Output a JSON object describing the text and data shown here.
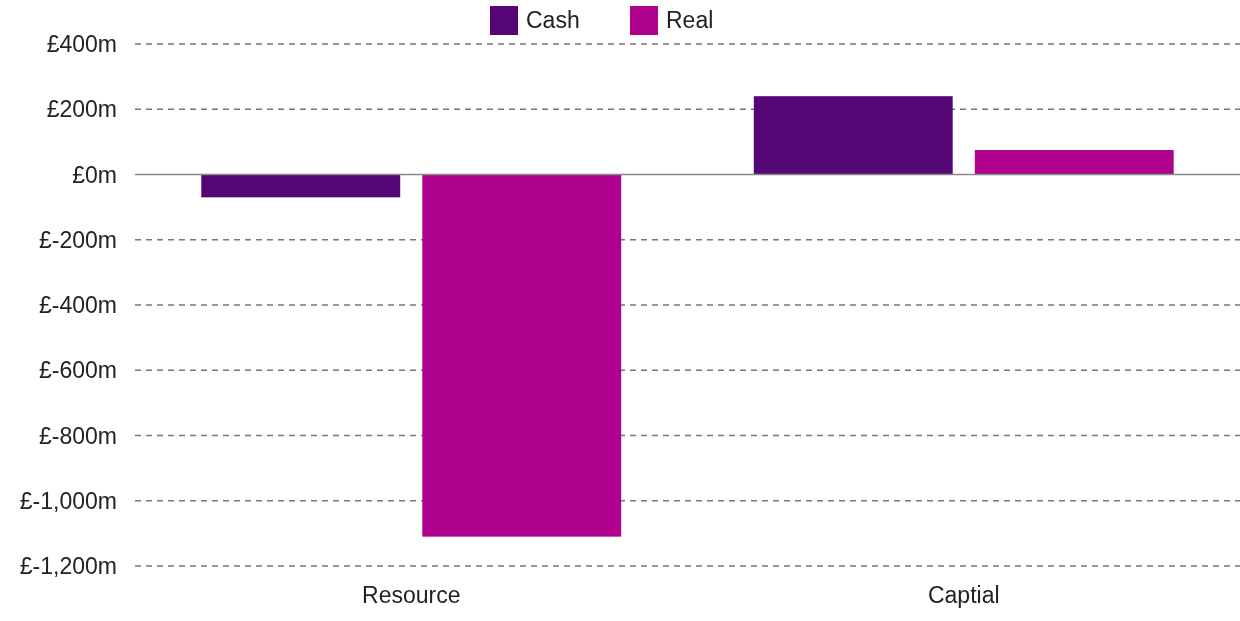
{
  "chart_data": {
    "type": "bar",
    "categories": [
      "Resource",
      "Captial"
    ],
    "series": [
      {
        "name": "Cash",
        "color": "#540675",
        "values": [
          -70,
          240
        ]
      },
      {
        "name": "Real",
        "color": "#b0008e",
        "values": [
          -1110,
          75
        ]
      }
    ],
    "ylim": [
      -1200,
      400
    ],
    "yticks": [
      {
        "value": 400,
        "label": "£400m"
      },
      {
        "value": 200,
        "label": "£200m"
      },
      {
        "value": 0,
        "label": "£0m"
      },
      {
        "value": -200,
        "label": "£-200m"
      },
      {
        "value": -400,
        "label": "£-400m"
      },
      {
        "value": -600,
        "label": "£-600m"
      },
      {
        "value": -800,
        "label": "£-800m"
      },
      {
        "value": -1000,
        "label": "£-1,000m"
      },
      {
        "value": -1200,
        "label": "£-1,200m"
      }
    ],
    "grid": "y",
    "legend": "top"
  }
}
